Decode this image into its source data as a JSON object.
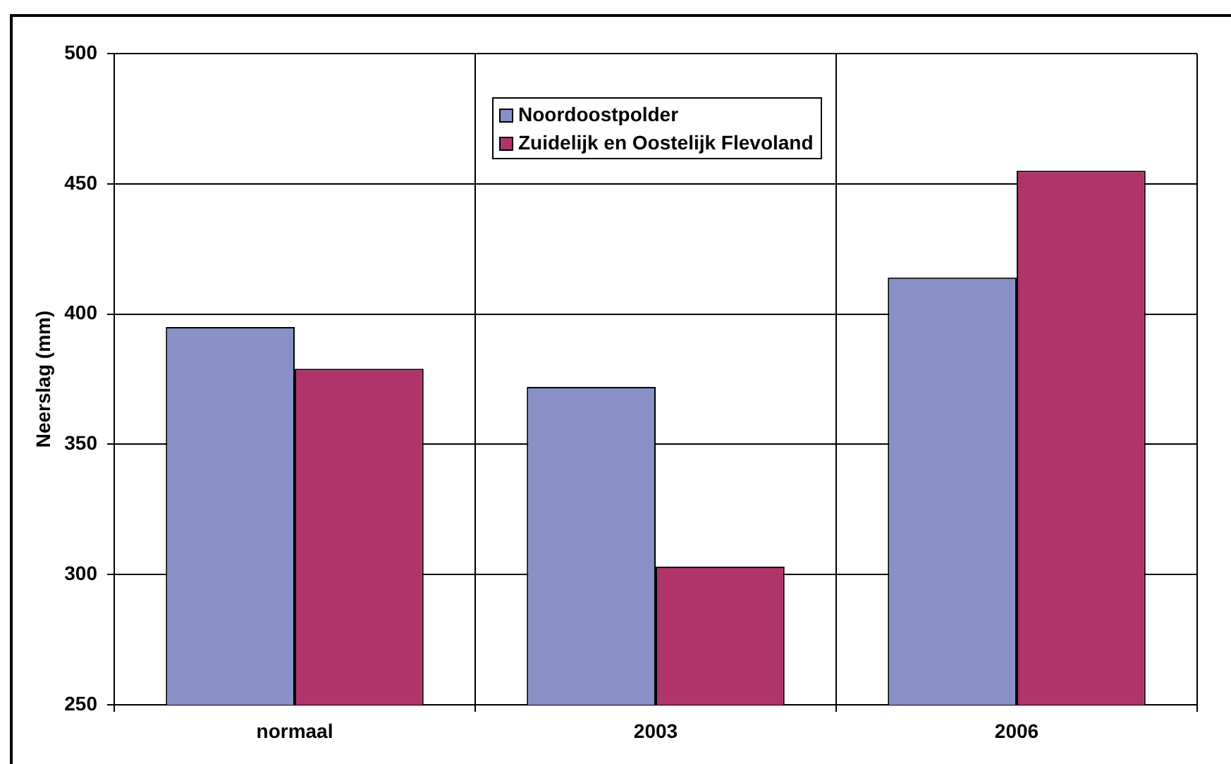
{
  "chart_data": {
    "type": "bar",
    "ylabel": "Neerslag (mm)",
    "categories": [
      "normaal",
      "2003",
      "2006"
    ],
    "series": [
      {
        "name": "Noordoostpolder",
        "color": "#8890c6",
        "values": [
          395,
          372,
          414
        ]
      },
      {
        "name": "Zuidelijk en Oostelijk Flevoland",
        "color": "#ae346a",
        "values": [
          379,
          303,
          455
        ]
      }
    ],
    "ylim": [
      250,
      500
    ],
    "yticks": [
      250,
      300,
      350,
      400,
      450,
      500
    ],
    "grid": true,
    "legend": "top"
  }
}
